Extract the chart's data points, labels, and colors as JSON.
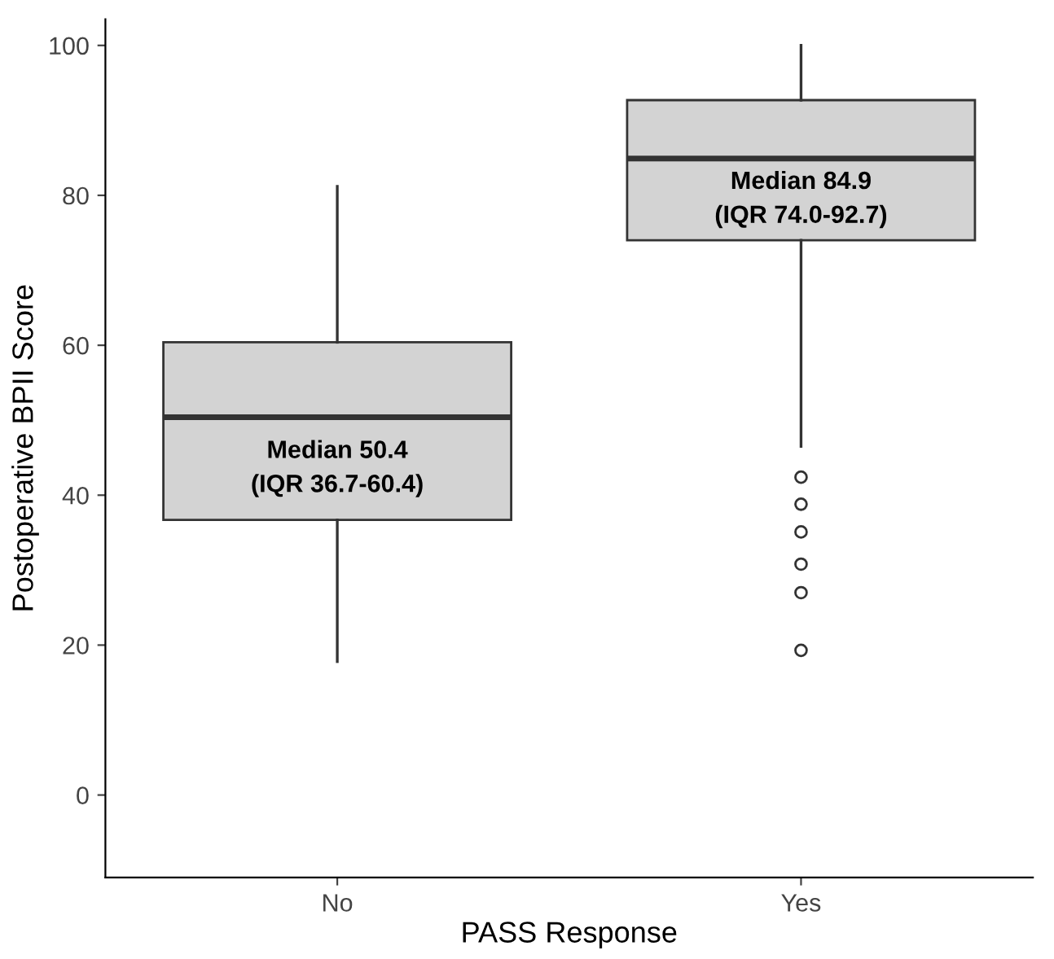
{
  "chart_data": {
    "type": "box",
    "xlabel": "PASS Response",
    "ylabel": "Postoperative BPII Score",
    "categories": [
      "No",
      "Yes"
    ],
    "boxes": [
      {
        "low": 17.8,
        "q1": 36.7,
        "median": 50.4,
        "q3": 60.4,
        "high": 81.2
      },
      {
        "low": 46.5,
        "q1": 74.0,
        "median": 84.9,
        "q3": 92.7,
        "high": 100,
        "outliers": [
          42.4,
          38.8,
          35.1,
          30.8,
          27.0,
          19.3
        ]
      }
    ],
    "color": "#d3d3d3",
    "ylim": [
      -11,
      103.5
    ],
    "yticks": [
      0,
      20,
      40,
      60,
      80,
      100
    ],
    "grid": false,
    "legend": false,
    "annotations": [
      "Median 50.4\n(IQR 36.7-60.4)",
      "Median 84.9\n(IQR 74.0-92.7)"
    ]
  }
}
